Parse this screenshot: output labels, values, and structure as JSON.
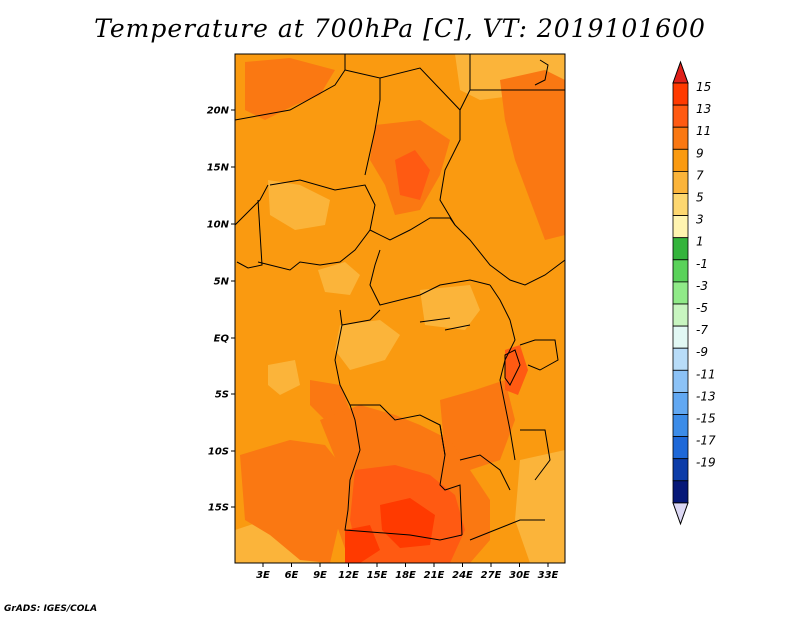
{
  "title": "Temperature at 700hPa [C], VT: 2019101600",
  "credit": "GrADS: IGES/COLA",
  "lat_ticks": [
    "20N",
    "15N",
    "10N",
    "5N",
    "EQ",
    "5S",
    "10S",
    "15S"
  ],
  "lon_ticks": [
    "3E",
    "6E",
    "9E",
    "12E",
    "15E",
    "18E",
    "21E",
    "24E",
    "27E",
    "30E",
    "33E"
  ],
  "colorbar": {
    "labels": [
      "15",
      "13",
      "11",
      "9",
      "7",
      "5",
      "3",
      "1",
      "-1",
      "-3",
      "-5",
      "-7",
      "-9",
      "-11",
      "-13",
      "-15",
      "-17",
      "-19"
    ],
    "colors": [
      "#ff3a00",
      "#ff5a12",
      "#fa7812",
      "#fa9a10",
      "#fbb43a",
      "#fdd770",
      "#fff4b0",
      "#34b43c",
      "#5ad25a",
      "#90ea88",
      "#c8f5c0",
      "#e2f8f4",
      "#b8dcf8",
      "#8cc2f6",
      "#62a8f2",
      "#3c8ce8",
      "#1e68d8",
      "#0c3ca8",
      "#061878"
    ],
    "arrow_top_color": "#e0201a",
    "arrow_bottom_color": "#dcd8f4"
  },
  "field_colors": {
    "base": "#fa9a10",
    "light": "#fbb43a",
    "warm": "#fa7812",
    "hot": "#ff5a12",
    "hottest": "#ff3a00"
  }
}
